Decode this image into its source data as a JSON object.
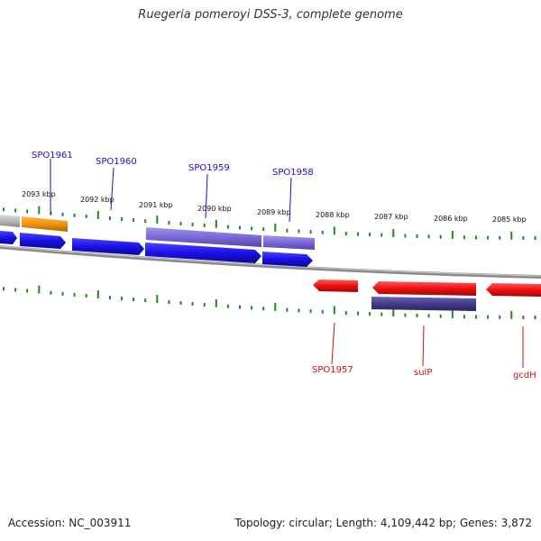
{
  "title": "Ruegeria pomeroyi DSS-3, complete genome",
  "footer": {
    "accession": "Accession: NC_003911",
    "summary": "Topology: circular; Length: 4,109,442 bp; Genes: 3,872"
  },
  "scale_labels": [
    "2093 kbp",
    "2092 kbp",
    "2091 kbp",
    "2090 kbp",
    "2089 kbp",
    "2088 kbp",
    "2087 kbp",
    "2086 kbp",
    "2085 kbp"
  ],
  "gene_labels_top": [
    "SPO1961",
    "SPO1960",
    "SPO1959",
    "SPO1958"
  ],
  "gene_labels_bottom": [
    "SPO1957",
    "sulP",
    "gcdH"
  ],
  "colors": {
    "forward_gene": "#1a10e8",
    "reverse_gene": "#ee0f0f",
    "cds_purple": "#7a68d6",
    "cds_dark": "#443c8a",
    "orange": "#f0920e",
    "gray": "#b8b8b8",
    "backbone": "#8a8a8a",
    "tick": "#1d8a1d",
    "label_blue": "#1a10c8",
    "label_red": "#c81010"
  }
}
